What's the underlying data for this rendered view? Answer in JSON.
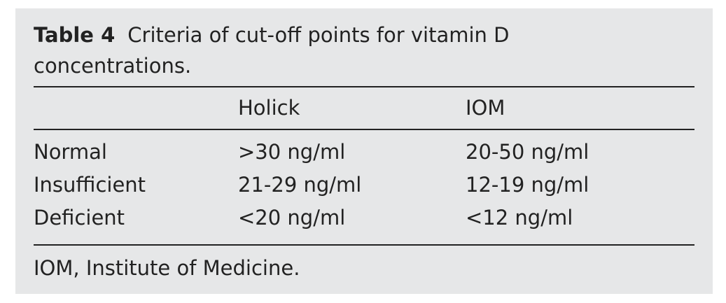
{
  "table": {
    "label": "Table 4",
    "caption": "Criteria of cut-off points for vitamin D concentrations.",
    "columns": [
      "",
      "Holick",
      "IOM"
    ],
    "rows": [
      [
        "Normal",
        ">30 ng/ml",
        "20-50 ng/ml"
      ],
      [
        "Insufficient",
        "21-29 ng/ml",
        "12-19 ng/ml"
      ],
      [
        "Deficient",
        "<20 ng/ml",
        "<12 ng/ml"
      ]
    ],
    "footnote": "IOM, Institute of Medicine."
  }
}
